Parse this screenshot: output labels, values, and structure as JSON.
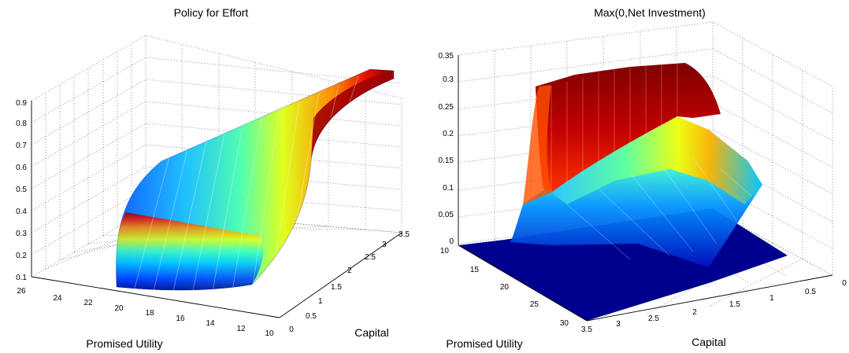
{
  "chart_data": [
    {
      "type": "surface",
      "title": "Policy for Effort",
      "xlabel": "Promised Utility",
      "ylabel": "Capital",
      "zlabel": "",
      "xlim": [
        10,
        26
      ],
      "ylim": [
        0,
        3.5
      ],
      "zlim": [
        0.1,
        0.9
      ],
      "xticks": [
        "10",
        "12",
        "14",
        "16",
        "18",
        "20",
        "22",
        "24",
        "26"
      ],
      "yticks": [
        "0",
        "0.5",
        "1",
        "1.5",
        "2",
        "2.5",
        "3",
        "3.5"
      ],
      "zticks": [
        "0.1",
        "0.2",
        "0.3",
        "0.4",
        "0.5",
        "0.6",
        "0.7",
        "0.8",
        "0.9"
      ],
      "colormap": "jet",
      "grid": true,
      "surface_samples": [
        {
          "utility": 20,
          "capital": 0.1,
          "effort": 0.12
        },
        {
          "utility": 20,
          "capital": 1.5,
          "effort": 0.55
        },
        {
          "utility": 20,
          "capital": 3.3,
          "effort": 0.86
        },
        {
          "utility": 13,
          "capital": 0.1,
          "effort": 0.13
        },
        {
          "utility": 13,
          "capital": 1.5,
          "effort": 0.6
        },
        {
          "utility": 13,
          "capital": 3.3,
          "effort": 0.89
        }
      ]
    },
    {
      "type": "surface",
      "title": "Max(0,Net Investment)",
      "xlabel": "Promised Utility",
      "ylabel": "Capital",
      "zlabel": "",
      "xlim": [
        10,
        30
      ],
      "ylim": [
        0,
        3.5
      ],
      "zlim": [
        0,
        0.35
      ],
      "xticks": [
        "10",
        "15",
        "20",
        "25",
        "30"
      ],
      "yticks": [
        "3.5",
        "3",
        "2.5",
        "2",
        "1.5",
        "1",
        "0.5",
        "0"
      ],
      "zticks": [
        "0",
        "0.05",
        "0.1",
        "0.15",
        "0.2",
        "0.25",
        "0.3",
        "0.35"
      ],
      "colormap": "jet",
      "grid": true,
      "surface_samples": [
        {
          "utility": 12,
          "capital": 3.3,
          "investment": 0.3
        },
        {
          "utility": 12,
          "capital": 2.0,
          "investment": 0.34
        },
        {
          "utility": 12,
          "capital": 0.5,
          "investment": 0.26
        },
        {
          "utility": 18,
          "capital": 2.0,
          "investment": 0.25
        },
        {
          "utility": 25,
          "capital": 1.0,
          "investment": 0.0
        }
      ]
    }
  ]
}
